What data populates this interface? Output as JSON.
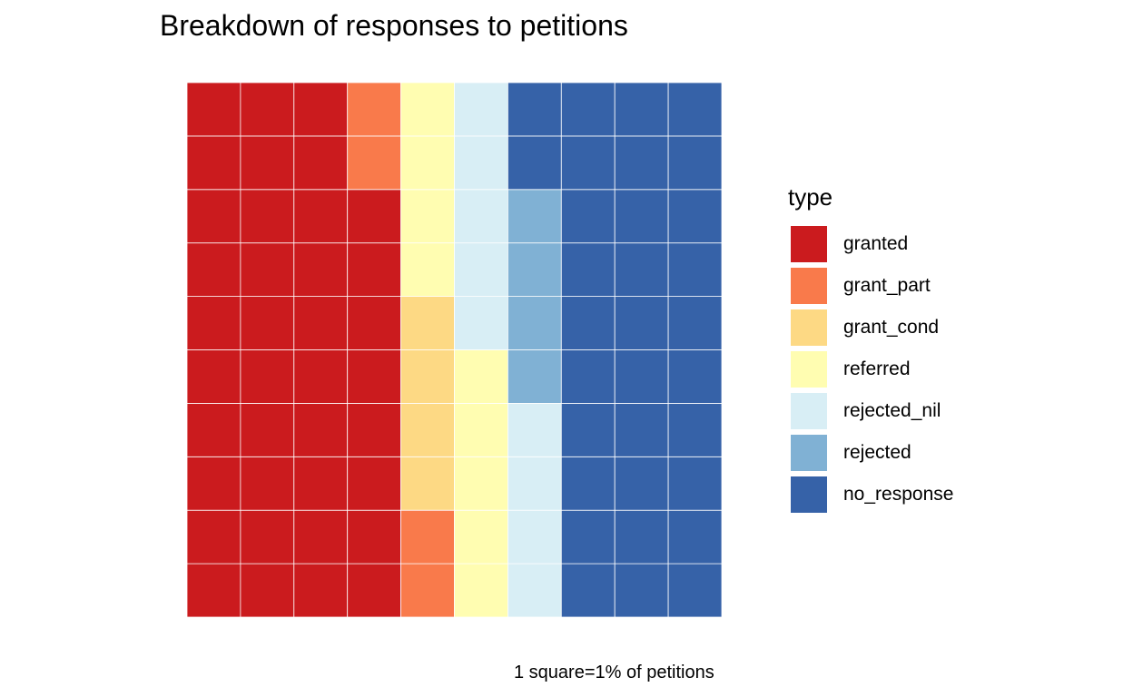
{
  "chart_data": {
    "type": "waffle",
    "title": "Breakdown of responses to petitions",
    "caption": "1 square=1% of petitions",
    "legend_title": "type",
    "grid": {
      "rows": 10,
      "cols": 10
    },
    "fill_order": "column-major, bottom to top",
    "categories": [
      {
        "name": "granted",
        "value": 38,
        "color": "#CB1B1E"
      },
      {
        "name": "grant_part",
        "value": 4,
        "color": "#F97A4B"
      },
      {
        "name": "grant_cond",
        "value": 4,
        "color": "#FDD984"
      },
      {
        "name": "referred",
        "value": 9,
        "color": "#FFFDB1"
      },
      {
        "name": "rejected_nil",
        "value": 9,
        "color": "#D8EEF5"
      },
      {
        "name": "rejected",
        "value": 4,
        "color": "#80B1D4"
      },
      {
        "name": "no_response",
        "value": 32,
        "color": "#3662A8"
      }
    ]
  }
}
